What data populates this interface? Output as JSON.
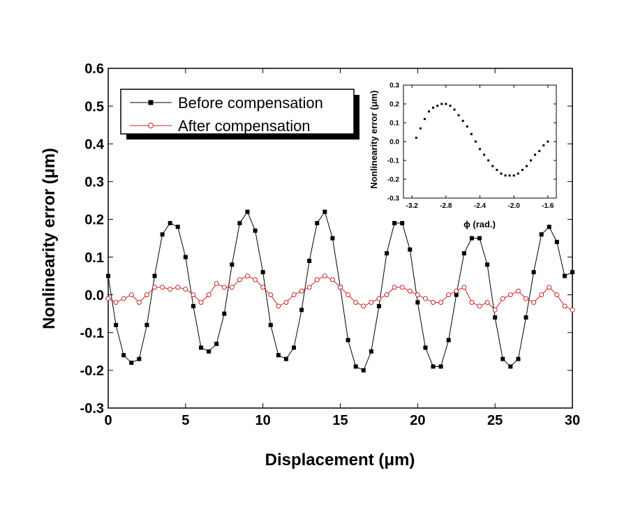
{
  "chart_data": [
    {
      "type": "line",
      "xlabel": "Displacement (μm)",
      "ylabel": "Nonlinearity error (μm)",
      "xlim": [
        0,
        30
      ],
      "ylim": [
        -0.3,
        0.6
      ],
      "xticks": [
        "0",
        "5",
        "10",
        "15",
        "20",
        "25",
        "30"
      ],
      "yticks": [
        "-0.3",
        "-0.2",
        "-0.1",
        "0.0",
        "0.1",
        "0.2",
        "0.3",
        "0.4",
        "0.5",
        "0.6"
      ],
      "legend_position": "top-left",
      "series": [
        {
          "name": "Before compensation",
          "color": "#000000",
          "marker": "filled-square",
          "description": "approximately sinusoidal, period ~4.95 μm, amplitude ~0.19 μm",
          "x": [
            0,
            0.5,
            1,
            1.5,
            2,
            2.5,
            3,
            3.5,
            4,
            4.5,
            5,
            5.5,
            6,
            6.5,
            7,
            7.5,
            8,
            8.5,
            9,
            9.5,
            10,
            10.5,
            11,
            11.5,
            12,
            12.5,
            13,
            13.5,
            14,
            14.5,
            15,
            15.5,
            16,
            16.5,
            17,
            17.5,
            18,
            18.5,
            19,
            19.5,
            20,
            20.5,
            21,
            21.5,
            22,
            22.5,
            23,
            23.5,
            24,
            24.5,
            25,
            25.5,
            26,
            26.5,
            27,
            27.5,
            28,
            28.5,
            29,
            29.5,
            30
          ],
          "values": [
            0.05,
            -0.08,
            -0.16,
            -0.18,
            -0.17,
            -0.08,
            0.05,
            0.16,
            0.19,
            0.18,
            0.1,
            -0.03,
            -0.14,
            -0.15,
            -0.13,
            -0.05,
            0.08,
            0.19,
            0.22,
            0.17,
            0.06,
            -0.08,
            -0.16,
            -0.17,
            -0.14,
            -0.04,
            0.09,
            0.19,
            0.22,
            0.15,
            0.02,
            -0.12,
            -0.19,
            -0.2,
            -0.15,
            -0.03,
            0.11,
            0.19,
            0.19,
            0.12,
            -0.02,
            -0.14,
            -0.19,
            -0.19,
            -0.12,
            0.0,
            0.11,
            0.15,
            0.15,
            0.08,
            -0.06,
            -0.17,
            -0.19,
            -0.17,
            -0.06,
            0.06,
            0.16,
            0.18,
            0.14,
            0.05,
            0.06
          ]
        },
        {
          "name": "After compensation",
          "color": "#cc2222",
          "marker": "open-circle",
          "description": "small residual fluctuation around zero, within about ±0.07 μm",
          "x": [
            0,
            0.5,
            1,
            1.5,
            2,
            2.5,
            3,
            3.5,
            4,
            4.5,
            5,
            5.5,
            6,
            6.5,
            7,
            7.5,
            8,
            8.5,
            9,
            9.5,
            10,
            10.5,
            11,
            11.5,
            12,
            12.5,
            13,
            13.5,
            14,
            14.5,
            15,
            15.5,
            16,
            16.5,
            17,
            17.5,
            18,
            18.5,
            19,
            19.5,
            20,
            20.5,
            21,
            21.5,
            22,
            22.5,
            23,
            23.5,
            24,
            24.5,
            25,
            25.5,
            26,
            26.5,
            27,
            27.5,
            28,
            28.5,
            29,
            29.5,
            30
          ],
          "values": [
            -0.01,
            -0.02,
            -0.01,
            0.0,
            -0.02,
            0.0,
            0.02,
            0.02,
            0.015,
            0.02,
            0.015,
            0.0,
            -0.02,
            0.0,
            0.03,
            0.02,
            0.02,
            0.04,
            0.05,
            0.04,
            0.02,
            0.0,
            -0.03,
            -0.02,
            0.0,
            0.01,
            0.02,
            0.04,
            0.05,
            0.04,
            0.02,
            0.0,
            -0.02,
            -0.03,
            -0.02,
            -0.01,
            0.0,
            0.02,
            0.02,
            0.01,
            0.0,
            -0.01,
            -0.02,
            -0.02,
            0.0,
            0.01,
            0.02,
            -0.02,
            -0.03,
            -0.02,
            -0.04,
            -0.01,
            0.0,
            0.01,
            -0.01,
            -0.02,
            0.0,
            0.02,
            0.0,
            -0.03,
            -0.04
          ]
        }
      ]
    },
    {
      "type": "scatter",
      "xlabel": "ϕ (rad.)",
      "ylabel": "Nonlinearity error (μm)",
      "xlim": [
        -3.3,
        -1.5
      ],
      "ylim": [
        -0.3,
        0.3
      ],
      "xticks": [
        "-3.2",
        "-2.8",
        "-2.4",
        "-2.0",
        "-1.6"
      ],
      "yticks": [
        "-0.3",
        "-0.2",
        "-0.1",
        "0.0",
        "0.1",
        "0.2",
        "0.3"
      ],
      "series": [
        {
          "name": "inset",
          "color": "#000000",
          "marker": "small-square",
          "description": "points follow sine curve, peak ~0.2 near -2.8 rad, trough ~-0.18 near -2.0 rad",
          "x": [
            -3.15,
            -3.1,
            -3.05,
            -3.0,
            -2.95,
            -2.9,
            -2.85,
            -2.8,
            -2.75,
            -2.7,
            -2.65,
            -2.6,
            -2.55,
            -2.5,
            -2.45,
            -2.4,
            -2.35,
            -2.3,
            -2.25,
            -2.2,
            -2.15,
            -2.1,
            -2.05,
            -2.0,
            -1.95,
            -1.9,
            -1.85,
            -1.8,
            -1.75,
            -1.7,
            -1.65,
            -1.6
          ],
          "values": [
            0.02,
            0.07,
            0.12,
            0.16,
            0.18,
            0.19,
            0.2,
            0.2,
            0.19,
            0.17,
            0.14,
            0.11,
            0.08,
            0.04,
            0.0,
            -0.04,
            -0.07,
            -0.1,
            -0.13,
            -0.15,
            -0.17,
            -0.18,
            -0.18,
            -0.18,
            -0.17,
            -0.15,
            -0.13,
            -0.1,
            -0.07,
            -0.05,
            -0.02,
            0.0
          ]
        }
      ]
    }
  ]
}
